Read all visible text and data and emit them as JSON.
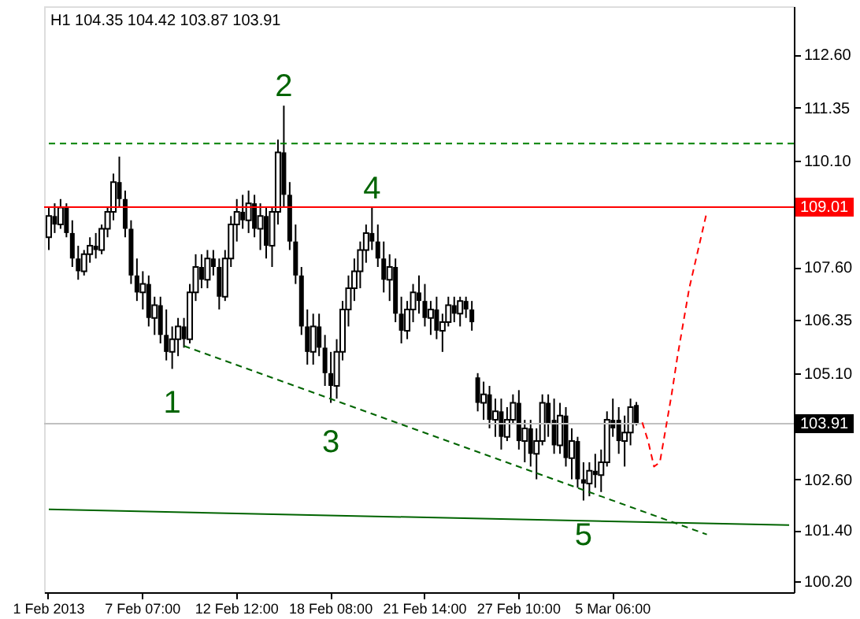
{
  "chart_data": {
    "type": "candlestick",
    "title": "H1  104.35 104.42 103.87 103.91",
    "color": "#000000",
    "categories": [
      "1 Feb 2013",
      null,
      null,
      null,
      null,
      null,
      null,
      null,
      null,
      null,
      null,
      null,
      null,
      null,
      null,
      null,
      "7 Feb 07:00",
      null,
      null,
      null,
      null,
      null,
      null,
      null,
      null,
      null,
      null,
      null,
      null,
      null,
      null,
      null,
      "12 Feb 12:00",
      null,
      null,
      null,
      null,
      null,
      null,
      null,
      null,
      null,
      null,
      null,
      null,
      null,
      null,
      null,
      "18 Feb 08:00",
      null,
      null,
      null,
      null,
      null,
      null,
      null,
      null,
      null,
      null,
      null,
      null,
      null,
      null,
      null,
      "21 Feb 14:00",
      null,
      null,
      null,
      null,
      null,
      null,
      null,
      null,
      null,
      null,
      null,
      null,
      null,
      null,
      null,
      "27 Feb 10:00",
      null,
      null,
      null,
      null,
      null,
      null,
      null,
      null,
      null,
      null,
      null,
      null,
      null,
      null,
      null,
      "5 Mar 06:00",
      null,
      null,
      null,
      null,
      null,
      null,
      null,
      null,
      null,
      null,
      null,
      null,
      null,
      null,
      null,
      null,
      null,
      null,
      null,
      null,
      null,
      null,
      null,
      null,
      null,
      null,
      null,
      null,
      null,
      null
    ],
    "ohlc": [
      [
        108.3,
        109.0,
        108.0,
        108.8
      ],
      [
        108.8,
        109.1,
        108.4,
        108.6
      ],
      [
        108.6,
        109.2,
        108.5,
        109.0
      ],
      [
        109.0,
        109.1,
        108.3,
        108.4
      ],
      [
        108.4,
        108.7,
        107.6,
        107.8
      ],
      [
        107.8,
        108.1,
        107.3,
        107.5
      ],
      [
        107.5,
        108.0,
        107.4,
        107.9
      ],
      [
        107.9,
        108.3,
        107.7,
        108.1
      ],
      [
        108.1,
        108.4,
        107.8,
        108.0
      ],
      [
        108.0,
        108.6,
        107.9,
        108.5
      ],
      [
        108.5,
        109.0,
        108.3,
        108.9
      ],
      [
        108.9,
        109.8,
        108.7,
        109.6
      ],
      [
        109.6,
        110.2,
        109.0,
        109.2
      ],
      [
        109.2,
        109.4,
        108.3,
        108.5
      ],
      [
        108.5,
        108.7,
        107.2,
        107.4
      ],
      [
        107.4,
        107.8,
        106.8,
        107.0
      ],
      [
        107.0,
        107.5,
        106.6,
        107.2
      ],
      [
        107.2,
        107.4,
        106.2,
        106.4
      ],
      [
        106.4,
        106.9,
        106.0,
        106.7
      ],
      [
        106.7,
        106.9,
        105.8,
        106.0
      ],
      [
        106.0,
        106.6,
        105.4,
        105.6
      ],
      [
        105.6,
        106.2,
        105.2,
        105.9
      ],
      [
        105.9,
        106.4,
        105.5,
        106.2
      ],
      [
        106.2,
        106.4,
        105.7,
        105.9
      ],
      [
        105.9,
        107.2,
        105.8,
        107.0
      ],
      [
        107.0,
        107.9,
        106.8,
        107.6
      ],
      [
        107.6,
        107.9,
        107.1,
        107.3
      ],
      [
        107.3,
        108.0,
        107.1,
        107.8
      ],
      [
        107.8,
        108.0,
        107.4,
        107.6
      ],
      [
        107.6,
        107.8,
        106.6,
        106.9
      ],
      [
        106.9,
        108.0,
        106.8,
        107.8
      ],
      [
        107.8,
        108.8,
        107.6,
        108.6
      ],
      [
        108.6,
        109.2,
        108.2,
        108.9
      ],
      [
        108.9,
        109.3,
        108.5,
        108.7
      ],
      [
        108.7,
        109.4,
        108.4,
        109.1
      ],
      [
        109.1,
        109.3,
        108.3,
        108.5
      ],
      [
        108.5,
        109.1,
        108.0,
        108.8
      ],
      [
        108.8,
        109.0,
        107.8,
        108.1
      ],
      [
        108.1,
        109.0,
        107.6,
        108.9
      ],
      [
        108.9,
        110.6,
        108.6,
        110.3
      ],
      [
        110.3,
        111.4,
        109.0,
        109.3
      ],
      [
        109.3,
        109.6,
        108.0,
        108.2
      ],
      [
        108.2,
        108.6,
        107.2,
        107.4
      ],
      [
        107.4,
        107.6,
        106.0,
        106.2
      ],
      [
        106.2,
        106.6,
        105.3,
        105.6
      ],
      [
        105.6,
        106.5,
        105.3,
        106.2
      ],
      [
        106.2,
        106.5,
        105.5,
        105.7
      ],
      [
        105.7,
        106.0,
        104.8,
        105.1
      ],
      [
        105.1,
        105.6,
        104.4,
        104.8
      ],
      [
        104.8,
        105.9,
        104.5,
        105.6
      ],
      [
        105.6,
        106.8,
        105.4,
        106.6
      ],
      [
        106.6,
        107.4,
        106.2,
        107.1
      ],
      [
        107.1,
        107.8,
        106.8,
        107.5
      ],
      [
        107.5,
        108.2,
        107.1,
        108.0
      ],
      [
        108.0,
        108.6,
        107.7,
        108.4
      ],
      [
        108.4,
        109.0,
        108.0,
        108.2
      ],
      [
        108.2,
        108.6,
        107.6,
        107.8
      ],
      [
        107.8,
        108.2,
        107.0,
        107.3
      ],
      [
        107.3,
        107.9,
        106.8,
        107.6
      ],
      [
        107.6,
        107.8,
        106.3,
        106.5
      ],
      [
        106.5,
        106.9,
        105.8,
        106.1
      ],
      [
        106.1,
        106.8,
        105.9,
        106.6
      ],
      [
        106.6,
        107.2,
        106.3,
        107.0
      ],
      [
        107.0,
        107.4,
        106.5,
        106.8
      ],
      [
        106.8,
        107.2,
        106.2,
        106.4
      ],
      [
        106.4,
        106.8,
        106.0,
        106.6
      ],
      [
        106.6,
        106.9,
        105.9,
        106.1
      ],
      [
        106.1,
        106.5,
        105.6,
        106.3
      ],
      [
        106.3,
        106.9,
        106.2,
        106.7
      ],
      [
        106.7,
        106.9,
        106.3,
        106.5
      ],
      [
        106.5,
        106.9,
        106.2,
        106.8
      ],
      [
        106.8,
        106.9,
        106.4,
        106.6
      ],
      [
        106.6,
        106.8,
        106.1,
        106.3
      ],
      [
        105.0,
        105.1,
        104.2,
        104.4
      ],
      [
        104.4,
        104.9,
        104.0,
        104.6
      ],
      [
        104.6,
        104.8,
        103.8,
        104.0
      ],
      [
        104.0,
        104.5,
        103.6,
        104.2
      ],
      [
        104.2,
        104.5,
        103.3,
        103.6
      ],
      [
        103.6,
        104.3,
        103.5,
        104.0
      ],
      [
        104.0,
        104.6,
        103.9,
        104.4
      ],
      [
        104.4,
        104.7,
        103.3,
        103.5
      ],
      [
        103.5,
        104.0,
        103.0,
        103.8
      ],
      [
        103.8,
        104.0,
        102.9,
        103.2
      ],
      [
        103.2,
        103.8,
        102.6,
        103.5
      ],
      [
        103.5,
        104.6,
        103.4,
        104.4
      ],
      [
        104.4,
        104.6,
        103.6,
        103.9
      ],
      [
        104.0,
        104.5,
        103.2,
        103.4
      ],
      [
        103.4,
        104.4,
        103.2,
        104.1
      ],
      [
        104.1,
        104.3,
        102.9,
        103.1
      ],
      [
        103.1,
        103.8,
        102.6,
        103.5
      ],
      [
        103.5,
        103.6,
        102.4,
        102.6
      ],
      [
        102.6,
        103.0,
        102.1,
        102.5
      ],
      [
        102.5,
        103.0,
        102.2,
        102.8
      ],
      [
        102.8,
        103.2,
        102.4,
        102.7
      ],
      [
        102.7,
        103.3,
        102.3,
        103.0
      ],
      [
        103.0,
        104.2,
        102.9,
        104.0
      ],
      [
        104.0,
        104.5,
        103.6,
        103.8
      ],
      [
        104.0,
        104.3,
        103.2,
        103.5
      ],
      [
        103.5,
        104.1,
        102.9,
        103.7
      ],
      [
        103.7,
        104.5,
        103.4,
        104.3
      ],
      [
        104.35,
        104.42,
        103.87,
        103.91
      ],
      null,
      null,
      null,
      null,
      null,
      null,
      null,
      null,
      null,
      null,
      null,
      null,
      null,
      null,
      null,
      null,
      null,
      null,
      null,
      null,
      null,
      null,
      null,
      null,
      null,
      null
    ],
    "series": [
      {
        "type": "line",
        "color": "#006400",
        "line_style": "dashed",
        "values": [
          null,
          null,
          null,
          null,
          null,
          null,
          null,
          null,
          null,
          null,
          null,
          null,
          null,
          null,
          null,
          null,
          null,
          null,
          null,
          null,
          null,
          null,
          null,
          105.74,
          null,
          null,
          null,
          null,
          null,
          null,
          null,
          null,
          null,
          null,
          null,
          null,
          null,
          null,
          null,
          null,
          null,
          null,
          null,
          null,
          null,
          null,
          null,
          null,
          null,
          null,
          null,
          null,
          null,
          null,
          null,
          null,
          null,
          null,
          null,
          null,
          null,
          null,
          null,
          null,
          null,
          null,
          null,
          null,
          null,
          null,
          null,
          null,
          null,
          null,
          null,
          null,
          null,
          null,
          null,
          null,
          null,
          null,
          null,
          null,
          null,
          null,
          null,
          null,
          null,
          null,
          null,
          null,
          null,
          null,
          null,
          null,
          null,
          null,
          null,
          null,
          null,
          null,
          null,
          null,
          null,
          null,
          null,
          null,
          null,
          null,
          null,
          null,
          101.3,
          null,
          null,
          null,
          null,
          null,
          null,
          null,
          null,
          null,
          null,
          null,
          null,
          null,
          null
        ]
      },
      {
        "type": "line",
        "color": "#006400",
        "line_style": "solid",
        "values": [
          101.89,
          null,
          null,
          null,
          null,
          null,
          null,
          null,
          null,
          null,
          null,
          null,
          null,
          null,
          null,
          null,
          null,
          null,
          null,
          null,
          null,
          null,
          null,
          null,
          null,
          null,
          null,
          null,
          null,
          null,
          null,
          null,
          null,
          null,
          null,
          null,
          null,
          null,
          null,
          null,
          null,
          null,
          null,
          null,
          null,
          null,
          null,
          null,
          null,
          null,
          null,
          null,
          null,
          null,
          null,
          null,
          null,
          null,
          null,
          null,
          null,
          null,
          null,
          null,
          null,
          null,
          null,
          null,
          null,
          null,
          null,
          null,
          null,
          null,
          null,
          null,
          null,
          null,
          null,
          null,
          null,
          null,
          null,
          null,
          null,
          null,
          null,
          null,
          null,
          null,
          null,
          null,
          null,
          null,
          null,
          null,
          null,
          null,
          null,
          null,
          null,
          null,
          null,
          null,
          null,
          null,
          null,
          null,
          null,
          null,
          null,
          null,
          null,
          null,
          null,
          null,
          null,
          null,
          null,
          null,
          null,
          null,
          null,
          null,
          null,
          null,
          101.52
        ]
      },
      {
        "type": "line",
        "color": "#ff0000",
        "line_style": "dashed",
        "values": [
          null,
          null,
          null,
          null,
          null,
          null,
          null,
          null,
          null,
          null,
          null,
          null,
          null,
          null,
          null,
          null,
          null,
          null,
          null,
          null,
          null,
          null,
          null,
          null,
          null,
          null,
          null,
          null,
          null,
          null,
          null,
          null,
          null,
          null,
          null,
          null,
          null,
          null,
          null,
          null,
          null,
          null,
          null,
          null,
          null,
          null,
          null,
          null,
          null,
          null,
          null,
          null,
          null,
          null,
          null,
          null,
          null,
          null,
          null,
          null,
          null,
          null,
          null,
          null,
          null,
          null,
          null,
          null,
          null,
          null,
          null,
          null,
          null,
          null,
          null,
          null,
          null,
          null,
          null,
          null,
          null,
          null,
          null,
          null,
          null,
          null,
          null,
          null,
          null,
          null,
          null,
          null,
          null,
          null,
          null,
          null,
          null,
          null,
          null,
          null,
          null,
          103.94,
          103.5,
          102.9,
          103.0,
          103.8,
          104.6,
          105.5,
          106.3,
          107.1,
          107.7,
          108.3,
          108.9,
          null,
          null,
          null,
          null,
          null,
          null,
          null,
          null,
          null,
          null,
          null,
          null,
          null,
          null
        ]
      }
    ],
    "ref_lines": [
      {
        "axis": "y",
        "value": 109.01,
        "label": "109.01",
        "color": "#ff0000",
        "line_style": "solid"
      },
      {
        "axis": "y",
        "value": 103.91,
        "label": "103.91",
        "color": "#c0c0c0",
        "line_style": "solid"
      },
      {
        "axis": "y",
        "value": 110.51,
        "label": null,
        "color": "#008000",
        "line_style": "dashed"
      }
    ],
    "annotations": [
      {
        "text": "1",
        "y": 105.2
      },
      {
        "text": "2",
        "y": 111.4
      },
      {
        "text": "3",
        "y": 104.4
      },
      {
        "text": "4",
        "y": 109.0
      },
      {
        "text": "5",
        "y": 102.1
      }
    ],
    "ylim": [
      99.94,
      113.74
    ],
    "yticks": [
      {
        "value": 112.6,
        "label": "112.60"
      },
      {
        "value": 111.35,
        "label": "111.35"
      },
      {
        "value": 110.1,
        "label": "110.10"
      },
      {
        "value": 107.6,
        "label": "107.60"
      },
      {
        "value": 106.35,
        "label": "106.35"
      },
      {
        "value": 105.1,
        "label": "105.10"
      },
      {
        "value": 102.6,
        "label": "102.60"
      },
      {
        "value": 101.4,
        "label": "101.40"
      },
      {
        "value": 100.2,
        "label": "100.20"
      }
    ],
    "grid": false
  }
}
